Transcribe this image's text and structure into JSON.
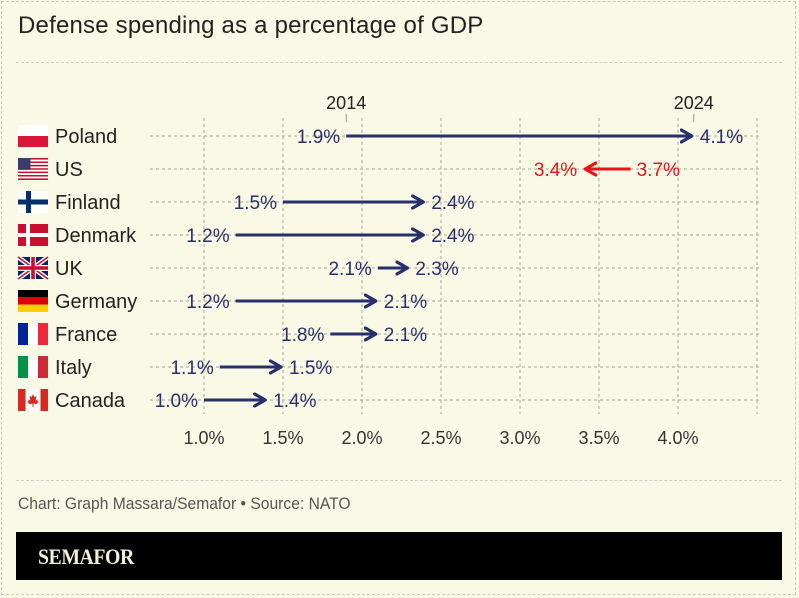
{
  "header": {
    "title": "Defense spending as a percentage of GDP"
  },
  "footer": {
    "source": "Chart: Graph Massara/Semafor • Source: NATO",
    "brand": "SEMAFOR"
  },
  "colors": {
    "background": "#faf9e6",
    "increase": "#27306b",
    "decrease": "#e8141b",
    "grid": "#b5b5aa",
    "text": "#222222"
  },
  "chart_data": {
    "type": "arrow-dot",
    "title": "Defense spending as a percentage of GDP",
    "start_label": "2014",
    "end_label": "2024",
    "xlabel": "",
    "ylabel": "",
    "xlim": [
      1.0,
      4.5
    ],
    "x_ticks": [
      1.0,
      1.5,
      2.0,
      2.5,
      3.0,
      3.5,
      4.0
    ],
    "x_tick_labels": [
      "1.0%",
      "1.5%",
      "2.0%",
      "2.5%",
      "3.0%",
      "3.5%",
      "4.0%"
    ],
    "grid": true,
    "categories": [
      "Poland",
      "US",
      "Finland",
      "Denmark",
      "UK",
      "Germany",
      "France",
      "Italy",
      "Canada"
    ],
    "series": [
      {
        "name": "2014",
        "values": [
          1.9,
          3.7,
          1.5,
          1.2,
          2.1,
          1.2,
          1.8,
          1.1,
          1.0
        ]
      },
      {
        "name": "2024",
        "values": [
          4.1,
          3.4,
          2.4,
          2.4,
          2.3,
          2.1,
          2.1,
          1.5,
          1.4
        ]
      }
    ],
    "rows": [
      {
        "country": "Poland",
        "flag": "poland-flag",
        "y2014": 1.9,
        "y2024": 4.1,
        "label2014": "1.9%",
        "label2024": "4.1%"
      },
      {
        "country": "US",
        "flag": "us-flag",
        "y2014": 3.7,
        "y2024": 3.4,
        "label2014": "3.7%",
        "label2024": "3.4%"
      },
      {
        "country": "Finland",
        "flag": "finland-flag",
        "y2014": 1.5,
        "y2024": 2.4,
        "label2014": "1.5%",
        "label2024": "2.4%"
      },
      {
        "country": "Denmark",
        "flag": "denmark-flag",
        "y2014": 1.2,
        "y2024": 2.4,
        "label2014": "1.2%",
        "label2024": "2.4%"
      },
      {
        "country": "UK",
        "flag": "uk-flag",
        "y2014": 2.1,
        "y2024": 2.3,
        "label2014": "2.1%",
        "label2024": "2.3%"
      },
      {
        "country": "Germany",
        "flag": "germany-flag",
        "y2014": 1.2,
        "y2024": 2.1,
        "label2014": "1.2%",
        "label2024": "2.1%"
      },
      {
        "country": "France",
        "flag": "france-flag",
        "y2014": 1.8,
        "y2024": 2.1,
        "label2014": "1.8%",
        "label2024": "2.1%"
      },
      {
        "country": "Italy",
        "flag": "italy-flag",
        "y2014": 1.1,
        "y2024": 1.5,
        "label2014": "1.1%",
        "label2024": "1.5%"
      },
      {
        "country": "Canada",
        "flag": "canada-flag",
        "y2014": 1.0,
        "y2024": 1.4,
        "label2014": "1.0%",
        "label2024": "1.4%"
      }
    ]
  }
}
